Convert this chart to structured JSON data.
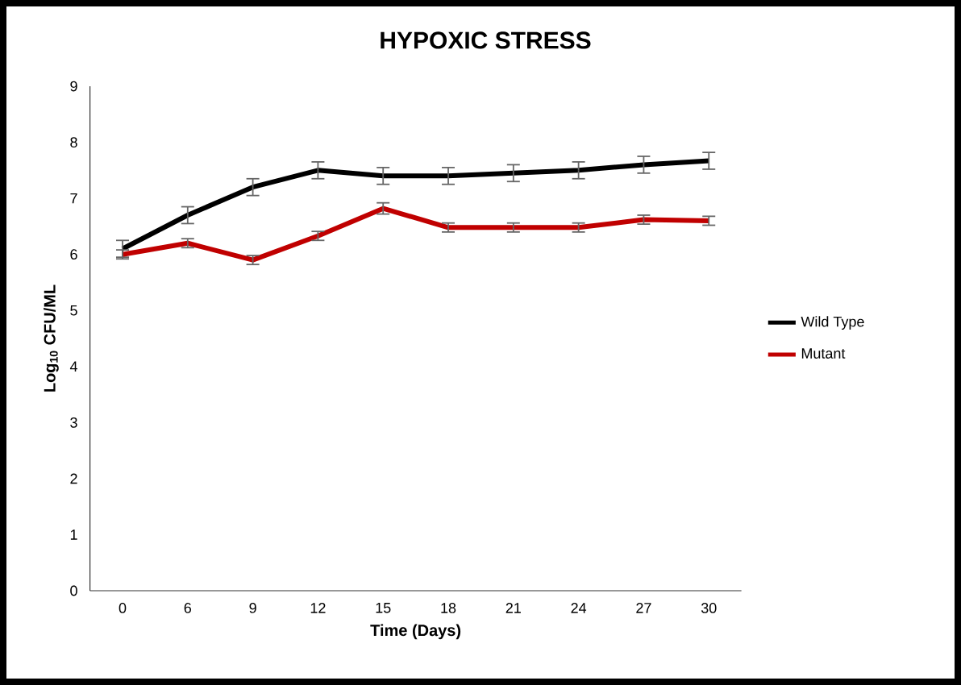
{
  "chart_data": {
    "type": "line",
    "title": "HYPOXIC STRESS",
    "xlabel": "Time (Days)",
    "ylabel": "Log$_{10}$ CFU/ML",
    "categories": [
      "0",
      "6",
      "9",
      "12",
      "15",
      "18",
      "21",
      "24",
      "27",
      "30"
    ],
    "series": [
      {
        "name": "Wild Type",
        "color": "#000000",
        "values": [
          6.1,
          6.7,
          7.2,
          7.5,
          7.4,
          7.4,
          7.45,
          7.5,
          7.6,
          7.67
        ],
        "errors": [
          0.15,
          0.15,
          0.15,
          0.15,
          0.15,
          0.15,
          0.15,
          0.15,
          0.15,
          0.15
        ]
      },
      {
        "name": "Mutant",
        "color": "#c00000",
        "values": [
          6.0,
          6.2,
          5.9,
          6.33,
          6.82,
          6.48,
          6.48,
          6.48,
          6.62,
          6.6
        ],
        "errors": [
          0.08,
          0.08,
          0.08,
          0.08,
          0.1,
          0.08,
          0.08,
          0.08,
          0.08,
          0.08
        ]
      }
    ],
    "ylim": [
      0,
      9
    ],
    "yticks": [
      0,
      1,
      2,
      3,
      4,
      5,
      6,
      7,
      8,
      9
    ],
    "grid": false,
    "legend": "right",
    "marker": "none",
    "line_style": "solid"
  }
}
